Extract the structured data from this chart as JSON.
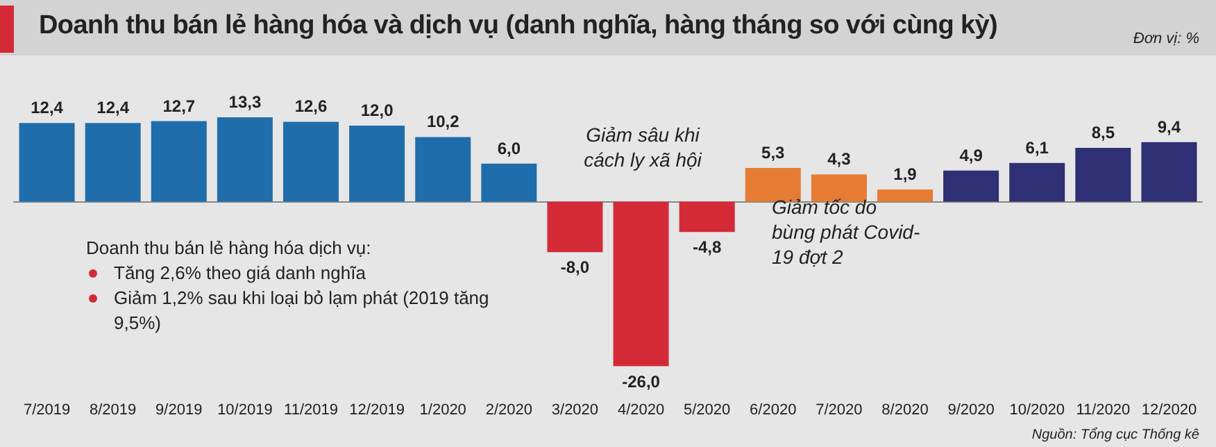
{
  "chart_data": {
    "type": "bar",
    "title": "Doanh thu bán lẻ hàng hóa và dịch vụ (danh nghĩa, hàng tháng so với cùng kỳ)",
    "categories": [
      "7/2019",
      "8/2019",
      "9/2019",
      "10/2019",
      "11/2019",
      "12/2019",
      "1/2020",
      "2/2020",
      "3/2020",
      "4/2020",
      "5/2020",
      "6/2020",
      "7/2020",
      "8/2020",
      "9/2020",
      "10/2020",
      "11/2020",
      "12/2020"
    ],
    "values": [
      12.4,
      12.4,
      12.7,
      13.3,
      12.6,
      12.0,
      10.2,
      6.0,
      -8.0,
      -26.0,
      -4.8,
      5.3,
      4.3,
      1.9,
      4.9,
      6.1,
      8.5,
      9.4
    ],
    "colors": [
      "#1f6dab",
      "#1f6dab",
      "#1f6dab",
      "#1f6dab",
      "#1f6dab",
      "#1f6dab",
      "#1f6dab",
      "#1f6dab",
      "#d42a37",
      "#d42a37",
      "#d42a37",
      "#e67c34",
      "#e67c34",
      "#e67c34",
      "#2e2f74",
      "#2e2f74",
      "#2e2f74",
      "#2e2f74"
    ],
    "value_labels": [
      "12,4",
      "12,4",
      "12,7",
      "13,3",
      "12,6",
      "12,0",
      "10,2",
      "6,0",
      "-8,0",
      "-26,0",
      "-4,8",
      "5,3",
      "4,3",
      "1,9",
      "4,9",
      "6,1",
      "8,5",
      "9,4"
    ],
    "annotations": [
      "Đơn vị: %",
      "Giảm sâu khi cách ly xã hội",
      "Giảm tốc do bùng phát Covid-19 đợt 2",
      "Doanh thu bán lẻ hàng hóa dịch vụ:",
      "Tăng 2,6% theo giá danh nghĩa",
      "Giảm 1,2% sau khi loại bỏ lạm phát (2019 tăng 9,5%)",
      "Nguồn: Tổng cục Thống kê"
    ]
  }
}
